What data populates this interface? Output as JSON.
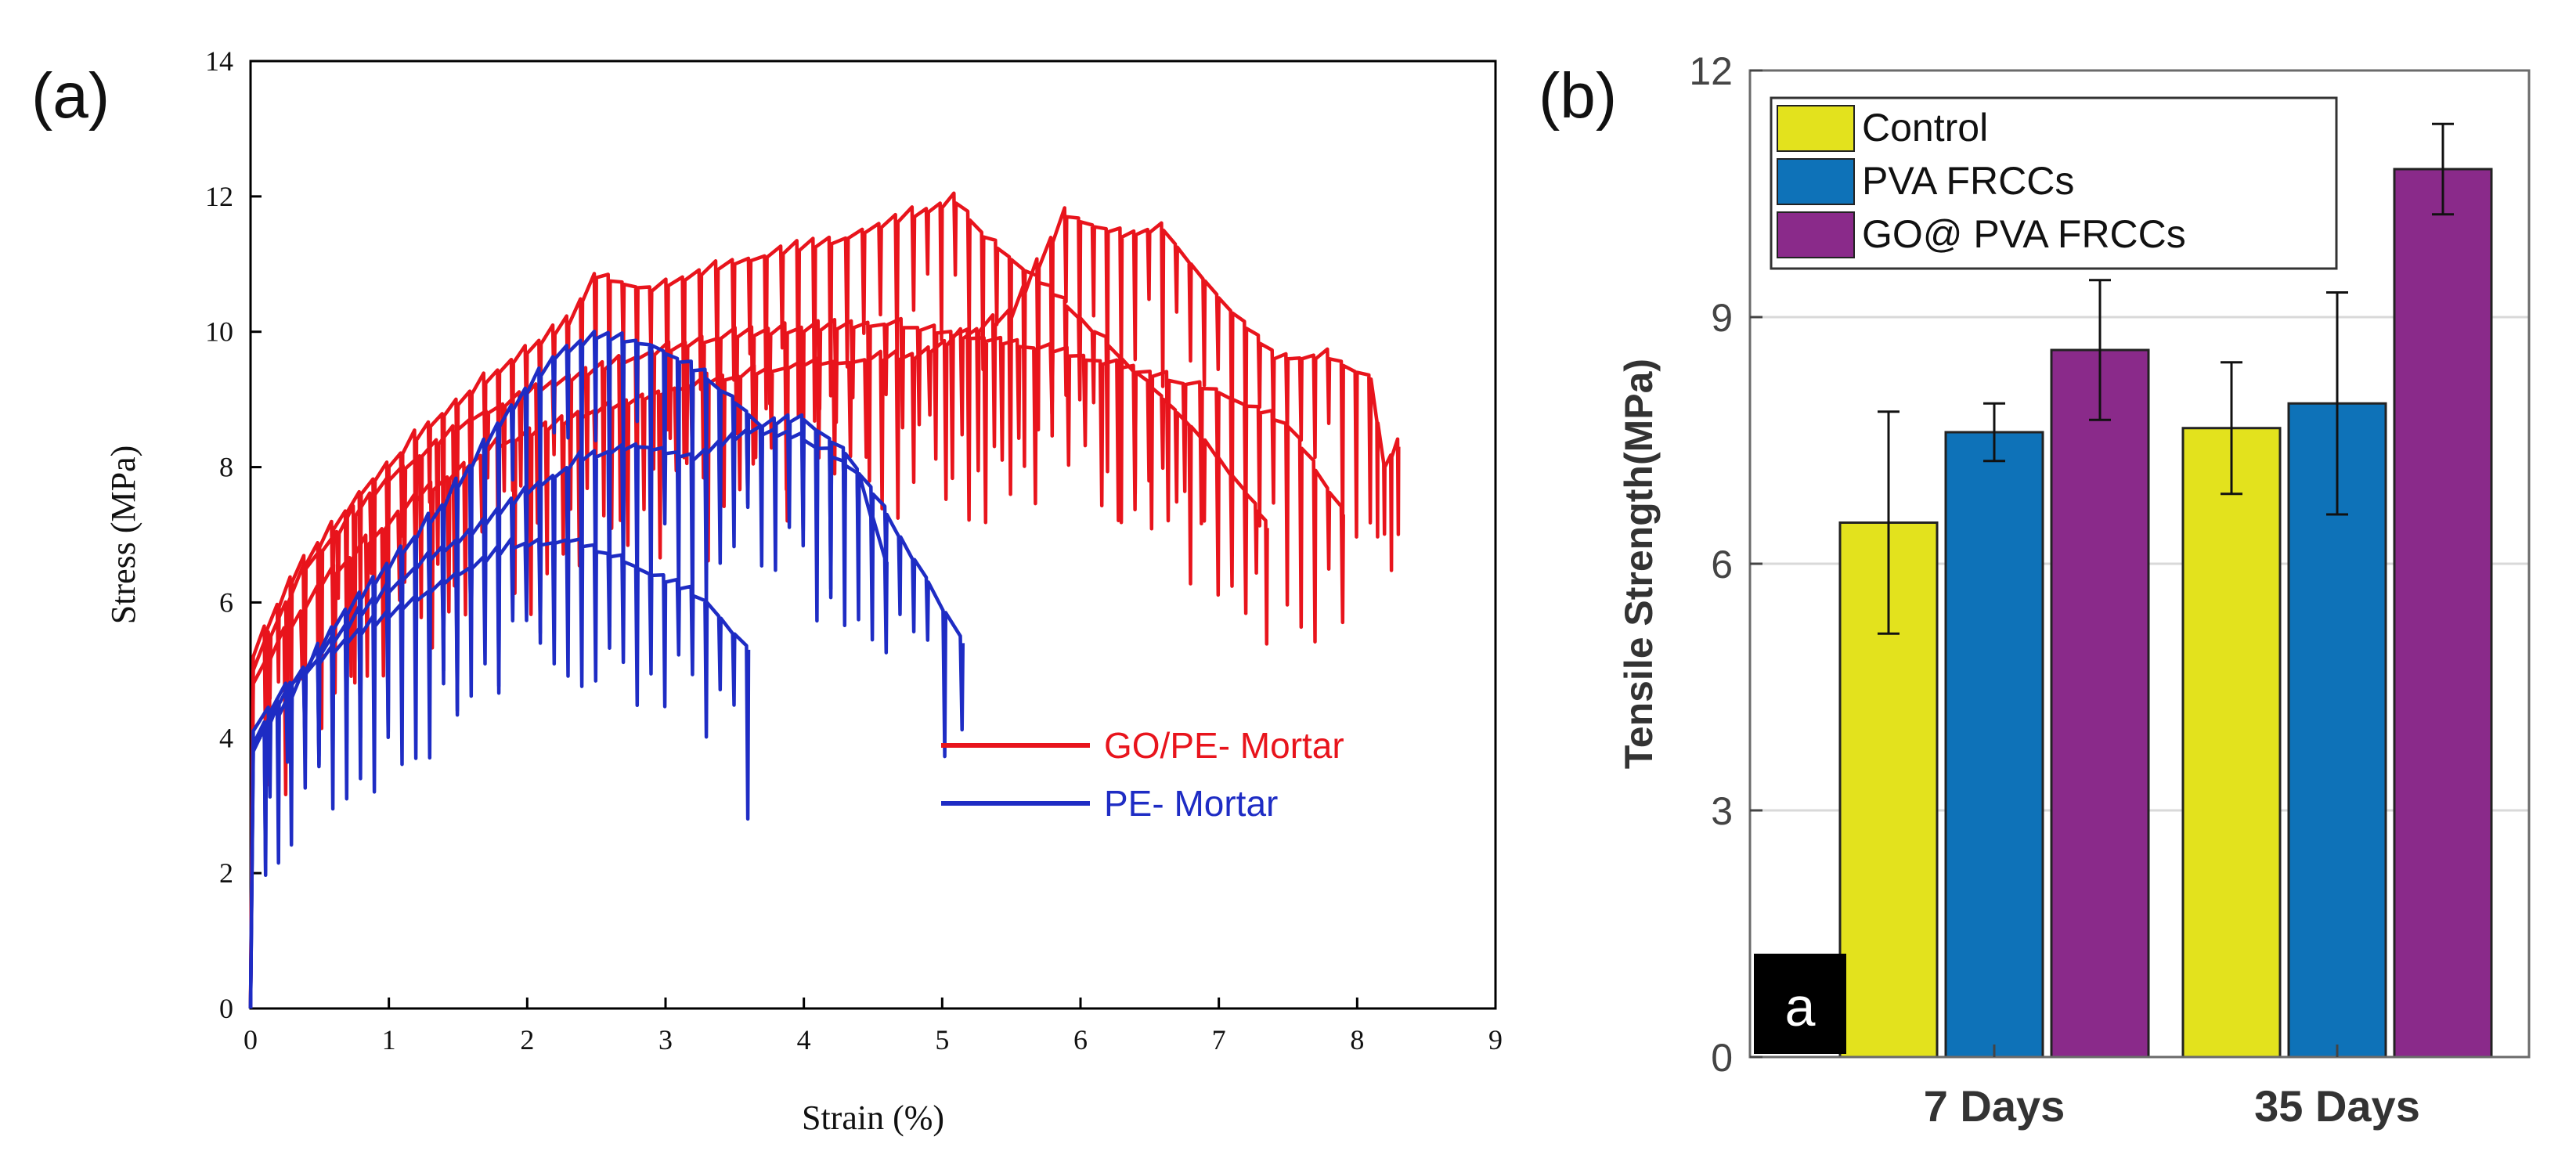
{
  "panel_a": {
    "label": "(a)",
    "chart_data": {
      "type": "line",
      "title": "",
      "xlabel": "Strain (%)",
      "ylabel": "Stress (MPa)",
      "xlim": [
        0,
        9
      ],
      "ylim": [
        0,
        14
      ],
      "xticks": [
        "0",
        "1",
        "2",
        "3",
        "4",
        "5",
        "6",
        "7",
        "8",
        "9"
      ],
      "yticks": [
        "0",
        "2",
        "4",
        "6",
        "8",
        "10",
        "12",
        "14"
      ],
      "legend_position": "lower-right",
      "series": [
        {
          "name": "GO/PE- Mortar",
          "color": "#e8141c",
          "curves": [
            [
              [
                0,
                0
              ],
              [
                0.02,
                5.2
              ],
              [
                0.3,
                6.3
              ],
              [
                0.8,
                7.6
              ],
              [
                1.3,
                8.6
              ],
              [
                1.8,
                9.4
              ],
              [
                2.3,
                10.1
              ],
              [
                2.5,
                10.8
              ],
              [
                2.9,
                10.6
              ],
              [
                3.5,
                11.0
              ],
              [
                4.2,
                11.3
              ],
              [
                4.8,
                11.7
              ],
              [
                5.1,
                11.9
              ],
              [
                5.3,
                11.4
              ],
              [
                5.6,
                10.9
              ],
              [
                6.0,
                10.2
              ],
              [
                6.5,
                9.2
              ],
              [
                6.9,
                8.4
              ],
              [
                7.2,
                7.6
              ],
              [
                7.35,
                7.1
              ]
            ],
            [
              [
                0,
                0
              ],
              [
                0.02,
                5.0
              ],
              [
                0.4,
                6.5
              ],
              [
                1.0,
                7.8
              ],
              [
                1.6,
                8.7
              ],
              [
                2.2,
                9.2
              ],
              [
                2.8,
                9.6
              ],
              [
                3.4,
                9.9
              ],
              [
                4.0,
                10.0
              ],
              [
                4.6,
                10.1
              ],
              [
                5.2,
                9.9
              ],
              [
                5.8,
                9.7
              ],
              [
                6.4,
                9.4
              ],
              [
                7.0,
                9.1
              ],
              [
                7.5,
                8.6
              ],
              [
                7.9,
                7.3
              ]
            ],
            [
              [
                0,
                0
              ],
              [
                0.02,
                4.8
              ],
              [
                0.5,
                6.2
              ],
              [
                1.2,
                7.5
              ],
              [
                1.8,
                8.3
              ],
              [
                2.5,
                8.8
              ],
              [
                3.2,
                9.2
              ],
              [
                4.0,
                9.5
              ],
              [
                4.8,
                9.6
              ],
              [
                5.5,
                10.2
              ],
              [
                5.9,
                11.7
              ],
              [
                6.3,
                11.4
              ],
              [
                6.6,
                11.5
              ],
              [
                7.0,
                10.5
              ],
              [
                7.4,
                9.6
              ],
              [
                7.8,
                9.6
              ],
              [
                8.1,
                9.3
              ],
              [
                8.2,
                8.0
              ],
              [
                8.3,
                8.3
              ]
            ]
          ]
        },
        {
          "name": "PE- Mortar",
          "color": "#1e2cc4",
          "curves": [
            [
              [
                0,
                0
              ],
              [
                0.02,
                3.8
              ],
              [
                0.3,
                4.6
              ],
              [
                0.6,
                5.6
              ],
              [
                1.0,
                6.5
              ],
              [
                1.4,
                7.4
              ],
              [
                1.8,
                8.6
              ],
              [
                2.2,
                9.6
              ],
              [
                2.5,
                9.9
              ],
              [
                2.9,
                9.8
              ],
              [
                3.3,
                9.3
              ],
              [
                3.7,
                8.6
              ],
              [
                4.0,
                8.7
              ],
              [
                4.3,
                8.2
              ],
              [
                4.6,
                7.3
              ],
              [
                4.9,
                6.3
              ],
              [
                5.15,
                5.4
              ]
            ],
            [
              [
                0,
                0
              ],
              [
                0.02,
                4.1
              ],
              [
                0.4,
                5.0
              ],
              [
                0.8,
                5.8
              ],
              [
                1.2,
                6.5
              ],
              [
                1.6,
                7.0
              ],
              [
                2.0,
                7.6
              ],
              [
                2.4,
                8.1
              ],
              [
                2.8,
                8.3
              ],
              [
                3.2,
                8.1
              ],
              [
                3.6,
                8.5
              ],
              [
                4.0,
                8.4
              ],
              [
                4.4,
                7.9
              ],
              [
                4.6,
                6.6
              ]
            ],
            [
              [
                0,
                0
              ],
              [
                0.02,
                3.9
              ],
              [
                0.3,
                4.8
              ],
              [
                0.7,
                5.4
              ],
              [
                1.1,
                5.9
              ],
              [
                1.5,
                6.4
              ],
              [
                1.9,
                6.8
              ],
              [
                2.3,
                6.9
              ],
              [
                2.7,
                6.6
              ],
              [
                3.0,
                6.3
              ],
              [
                3.3,
                6.0
              ],
              [
                3.6,
                5.3
              ]
            ]
          ]
        }
      ]
    }
  },
  "panel_b": {
    "label": "(b)",
    "chart_data": {
      "type": "bar",
      "title": "",
      "xlabel": "",
      "ylabel": "Tensile Strength(MPa)",
      "ylim": [
        0,
        12
      ],
      "yticks": [
        "0",
        "3",
        "6",
        "9",
        "12"
      ],
      "grid": true,
      "legend_position": "top-left",
      "categories": [
        "7 Days",
        "35 Days"
      ],
      "series": [
        {
          "name": "Control",
          "color": "#e3e21d",
          "values": [
            6.5,
            7.65
          ],
          "errors": [
            1.35,
            0.8
          ]
        },
        {
          "name": "PVA FRCCs",
          "color": "#0e72b8",
          "values": [
            7.6,
            7.95
          ],
          "errors": [
            0.35,
            1.35
          ]
        },
        {
          "name": "GO@ PVA FRCCs",
          "color": "#8a2a8a",
          "values": [
            8.6,
            10.8
          ],
          "errors": [
            0.85,
            0.55
          ]
        }
      ],
      "corner_badge": "a"
    }
  }
}
